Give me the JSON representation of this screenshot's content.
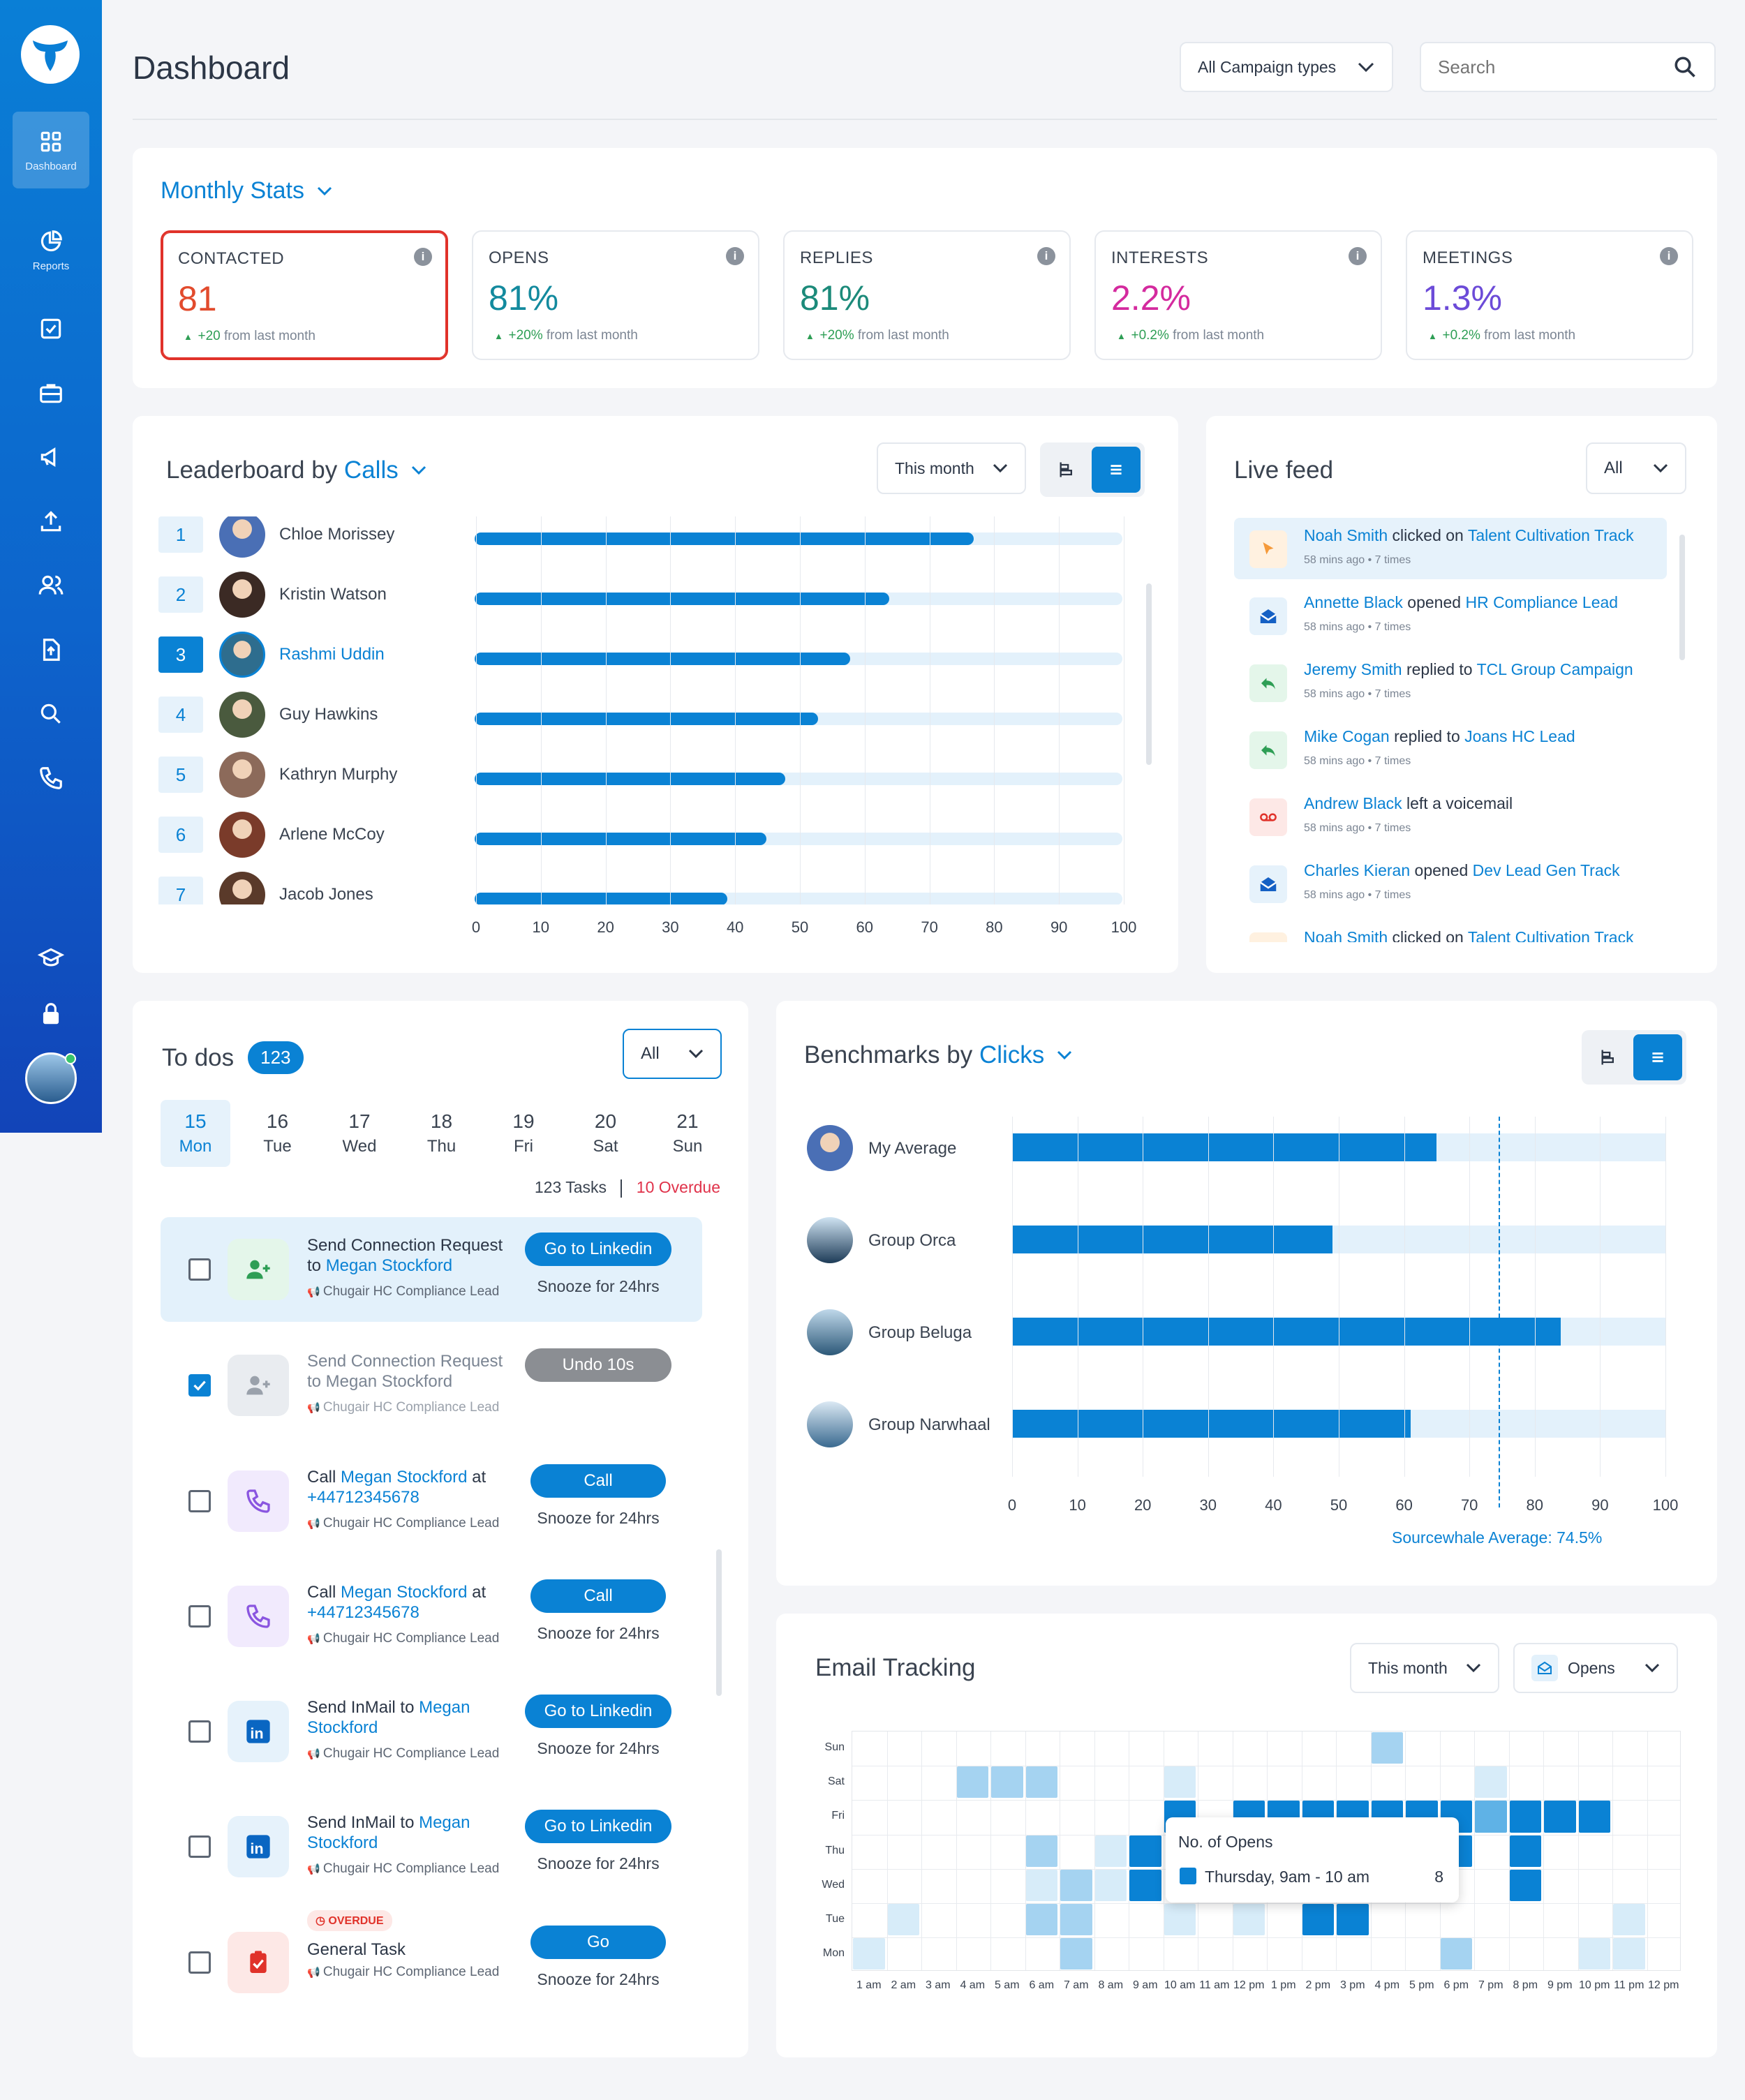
{
  "sidebar": {
    "dashboard_label": "Dashboard",
    "reports_label": "Reports"
  },
  "header": {
    "title": "Dashboard",
    "campaign_select": "All Campaign types",
    "search_placeholder": "Search"
  },
  "monthly": {
    "title": "Monthly Stats",
    "cards": [
      {
        "label": "CONTACTED",
        "value": "81",
        "change": "+20",
        "suffix": " from last month",
        "color": "#e24b2d"
      },
      {
        "label": "OPENS",
        "value": "81%",
        "change": "+20%",
        "suffix": " from last month",
        "color": "#138a9e"
      },
      {
        "label": "REPLIES",
        "value": "81%",
        "change": "+20%",
        "suffix": " from last month",
        "color": "#1c8a7a"
      },
      {
        "label": "INTERESTS",
        "value": "2.2%",
        "change": "+0.2%",
        "suffix": " from last month",
        "color": "#d42a9e"
      },
      {
        "label": "MEETINGS",
        "value": "1.3%",
        "change": "+0.2%",
        "suffix": " from last month",
        "color": "#6c4bd8"
      }
    ]
  },
  "leaderboard": {
    "title_prefix": "Leaderboard by ",
    "title_metric": "Calls",
    "period": "This month",
    "rows": [
      {
        "rank": "1",
        "name": "Chloe Morissey",
        "value": 77
      },
      {
        "rank": "2",
        "name": "Kristin Watson",
        "value": 64
      },
      {
        "rank": "3",
        "name": "Rashmi Uddin",
        "value": 58
      },
      {
        "rank": "4",
        "name": "Guy Hawkins",
        "value": 53
      },
      {
        "rank": "5",
        "name": "Kathryn Murphy",
        "value": 48
      },
      {
        "rank": "6",
        "name": "Arlene McCoy",
        "value": 45
      },
      {
        "rank": "7",
        "name": "Jacob Jones",
        "value": 39
      }
    ],
    "ticks": [
      "0",
      "10",
      "20",
      "30",
      "40",
      "50",
      "60",
      "70",
      "80",
      "90",
      "100"
    ]
  },
  "live_feed": {
    "title": "Live feed",
    "filter": "All",
    "items": [
      {
        "who": "Noah Smith",
        "action": " clicked on ",
        "target": "Talent Cultivation Track",
        "time": "58 mins ago",
        "count": "7 times"
      },
      {
        "who": "Annette Black",
        "action": " opened ",
        "target": "HR Compliance Lead",
        "time": "58 mins ago",
        "count": "7 times"
      },
      {
        "who": "Jeremy Smith",
        "action": " replied to ",
        "target": "TCL Group Campaign",
        "time": "58 mins ago",
        "count": "7 times"
      },
      {
        "who": "Mike Cogan",
        "action": " replied to ",
        "target": "Joans HC Lead",
        "time": "58 mins ago",
        "count": "7 times"
      },
      {
        "who": "Andrew Black",
        "action": " left a voicemail",
        "target": "",
        "time": "58 mins ago",
        "count": "7 times"
      },
      {
        "who": "Charles Kieran",
        "action": " opened ",
        "target": "Dev Lead Gen Track",
        "time": "58 mins ago",
        "count": "7 times"
      },
      {
        "who": "Noah Smith",
        "action": " clicked on ",
        "target": "Talent Cultivation Track",
        "time": "",
        "count": ""
      }
    ]
  },
  "todos": {
    "title": "To dos",
    "count": "123",
    "filter": "All",
    "days": [
      {
        "num": "15",
        "name": "Mon"
      },
      {
        "num": "16",
        "name": "Tue"
      },
      {
        "num": "17",
        "name": "Wed"
      },
      {
        "num": "18",
        "name": "Thu"
      },
      {
        "num": "19",
        "name": "Fri"
      },
      {
        "num": "20",
        "name": "Sat"
      },
      {
        "num": "21",
        "name": "Sun"
      }
    ],
    "tasks_count": "123 Tasks",
    "overdue_count": "10 Overdue",
    "items": [
      {
        "prefix": "Send Connection Request to ",
        "link": "Megan Stockford",
        "tail": "",
        "campaign": "Chugair HC Compliance Lead",
        "button": "Go to Linkedin",
        "snooze": "Snooze for 24hrs"
      },
      {
        "prefix": "Send Connection Request to Megan Stockford",
        "link": "",
        "tail": "",
        "campaign": "Chugair HC Compliance Lead",
        "button": "Undo 10s",
        "snooze": ""
      },
      {
        "prefix": "Call ",
        "link": "Megan Stockford",
        "tail": " at ",
        "phone": "+44712345678",
        "campaign": "Chugair HC Compliance Lead",
        "button": "Call",
        "snooze": "Snooze for 24hrs"
      },
      {
        "prefix": "Call ",
        "link": "Megan Stockford",
        "tail": " at ",
        "phone": "+44712345678",
        "campaign": "Chugair HC Compliance Lead",
        "button": "Call",
        "snooze": "Snooze for 24hrs"
      },
      {
        "prefix": "Send InMail to ",
        "link": "Megan Stockford",
        "tail": "",
        "campaign": "Chugair HC Compliance Lead",
        "button": "Go to Linkedin",
        "snooze": "Snooze for 24hrs"
      },
      {
        "prefix": "Send InMail to ",
        "link": "Megan Stockford",
        "tail": "",
        "campaign": "Chugair HC Compliance Lead",
        "button": "Go to Linkedin",
        "snooze": "Snooze for 24hrs"
      },
      {
        "badge": "OVERDUE",
        "prefix": "General Task",
        "link": "",
        "tail": "",
        "campaign": "Chugair HC Compliance Lead",
        "button": "Go",
        "snooze": "Snooze for 24hrs"
      }
    ]
  },
  "benchmarks": {
    "title_prefix": "Benchmarks by ",
    "title_metric": "Clicks",
    "average_label": "Sourcewhale Average: 74.5%",
    "average_value": 74.5,
    "rows": [
      {
        "name": "My Average",
        "value": 65
      },
      {
        "name": "Group Orca",
        "value": 49
      },
      {
        "name": "Group Beluga",
        "value": 84
      },
      {
        "name": "Group Narwhaal",
        "value": 61
      }
    ],
    "ticks": [
      "0",
      "10",
      "20",
      "30",
      "40",
      "50",
      "60",
      "70",
      "80",
      "90",
      "100"
    ]
  },
  "email_tracking": {
    "title": "Email Tracking",
    "period": "This month",
    "metric": "Opens",
    "days": [
      "Sun",
      "Sat",
      "Fri",
      "Thu",
      "Wed",
      "Tue",
      "Mon"
    ],
    "hours": [
      "1 am",
      "2 am",
      "3 am",
      "4 am",
      "5 am",
      "6 am",
      "7 am",
      "8 am",
      "9 am",
      "10 am",
      "11 am",
      "12 pm",
      "1 pm",
      "2 pm",
      "3 pm",
      "4 pm",
      "5 pm",
      "6 pm",
      "7 pm",
      "8 pm",
      "9 pm",
      "10 pm",
      "11 pm",
      "12 pm"
    ],
    "tooltip": {
      "title": "No. of Opens",
      "label": "Thursday, 9am - 10 am",
      "value": "8"
    },
    "cells": [
      [
        0,
        0,
        0,
        0,
        0,
        0,
        0,
        0,
        0,
        0,
        0,
        0,
        0,
        0,
        0,
        2,
        0,
        0,
        0,
        0,
        0,
        0,
        0,
        0
      ],
      [
        0,
        0,
        0,
        2,
        2,
        2,
        0,
        0,
        0,
        1,
        0,
        0,
        0,
        0,
        0,
        0,
        0,
        0,
        1,
        0,
        0,
        0,
        0,
        0
      ],
      [
        0,
        0,
        0,
        0,
        0,
        0,
        0,
        0,
        0,
        4,
        0,
        4,
        4,
        4,
        4,
        4,
        4,
        4,
        3,
        4,
        4,
        4,
        0,
        0
      ],
      [
        0,
        0,
        0,
        0,
        0,
        2,
        0,
        1,
        4,
        0,
        0,
        0,
        0,
        0,
        0,
        0,
        0,
        4,
        0,
        4,
        0,
        0,
        0,
        0
      ],
      [
        0,
        0,
        0,
        0,
        0,
        1,
        2,
        1,
        4,
        0,
        0,
        0,
        0,
        0,
        0,
        0,
        0,
        0,
        0,
        4,
        0,
        0,
        0,
        0
      ],
      [
        0,
        1,
        0,
        0,
        0,
        2,
        2,
        0,
        0,
        1,
        0,
        1,
        0,
        4,
        4,
        0,
        0,
        0,
        0,
        0,
        0,
        0,
        1,
        0
      ],
      [
        1,
        0,
        0,
        0,
        0,
        0,
        2,
        0,
        0,
        0,
        0,
        0,
        0,
        0,
        0,
        0,
        0,
        2,
        0,
        0,
        0,
        1,
        1,
        0
      ]
    ]
  }
}
